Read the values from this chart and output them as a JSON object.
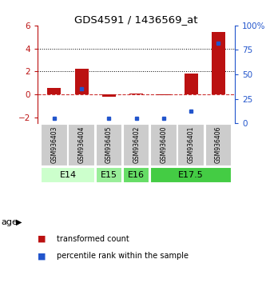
{
  "title": "GDS4591 / 1436569_at",
  "samples": [
    "GSM936403",
    "GSM936404",
    "GSM936405",
    "GSM936402",
    "GSM936400",
    "GSM936401",
    "GSM936406"
  ],
  "transformed_count": [
    0.55,
    2.2,
    -0.2,
    0.07,
    -0.05,
    1.85,
    5.4
  ],
  "percentile_rank": [
    5,
    35,
    5,
    5,
    5,
    12,
    82
  ],
  "age_groups": [
    {
      "label": "E14",
      "samples": [
        0,
        1
      ],
      "color": "#ccffcc"
    },
    {
      "label": "E15",
      "samples": [
        2
      ],
      "color": "#99ee99"
    },
    {
      "label": "E16",
      "samples": [
        3
      ],
      "color": "#66dd66"
    },
    {
      "label": "E17.5",
      "samples": [
        4,
        5,
        6
      ],
      "color": "#44cc44"
    }
  ],
  "bar_color_red": "#bb1111",
  "bar_color_blue": "#2255cc",
  "ylim_left": [
    -2.5,
    6.0
  ],
  "ylim_right": [
    0,
    100
  ],
  "yticks_left": [
    -2,
    0,
    2,
    4,
    6
  ],
  "yticks_right": [
    0,
    25,
    50,
    75,
    100
  ],
  "legend_items": [
    {
      "color": "#bb1111",
      "label": "transformed count"
    },
    {
      "color": "#2255cc",
      "label": "percentile rank within the sample"
    }
  ],
  "age_label": "age",
  "sample_box_color": "#cccccc",
  "bar_width": 0.5
}
